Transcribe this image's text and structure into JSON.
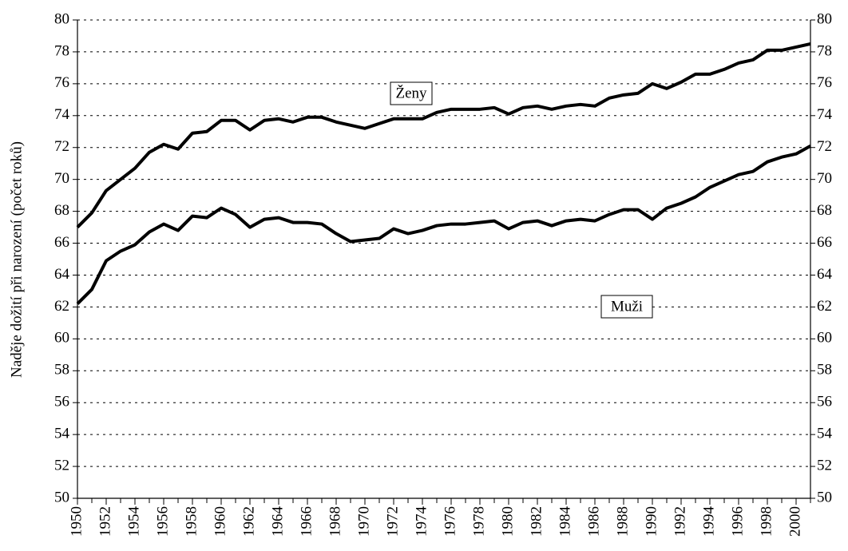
{
  "chart_data": {
    "type": "line",
    "y_label": "Naděje dožití při narození (počet roků)",
    "x": [
      1950,
      1951,
      1952,
      1953,
      1954,
      1955,
      1956,
      1957,
      1958,
      1959,
      1960,
      1961,
      1962,
      1963,
      1964,
      1965,
      1966,
      1967,
      1968,
      1969,
      1970,
      1971,
      1972,
      1973,
      1974,
      1975,
      1976,
      1977,
      1978,
      1979,
      1980,
      1981,
      1982,
      1983,
      1984,
      1985,
      1986,
      1987,
      1988,
      1989,
      1990,
      1991,
      1992,
      1993,
      1994,
      1995,
      1996,
      1997,
      1998,
      1999,
      2000,
      2001
    ],
    "series": [
      {
        "name": "Ženy",
        "color": "#000000",
        "values": [
          67.0,
          67.9,
          69.3,
          70.0,
          70.7,
          71.7,
          72.2,
          71.9,
          72.9,
          73.0,
          73.7,
          73.7,
          73.1,
          73.7,
          73.8,
          73.6,
          73.9,
          73.9,
          73.6,
          73.4,
          73.2,
          73.5,
          73.8,
          73.8,
          73.8,
          74.2,
          74.4,
          74.4,
          74.4,
          74.5,
          74.1,
          74.5,
          74.6,
          74.4,
          74.6,
          74.7,
          74.6,
          75.1,
          75.3,
          75.4,
          76.0,
          75.7,
          76.1,
          76.6,
          76.6,
          76.9,
          77.3,
          77.5,
          78.1,
          78.1,
          78.3,
          78.5
        ]
      },
      {
        "name": "Muži",
        "color": "#000000",
        "values": [
          62.2,
          63.1,
          64.9,
          65.5,
          65.9,
          66.7,
          67.2,
          66.8,
          67.7,
          67.6,
          68.2,
          67.8,
          67.0,
          67.5,
          67.6,
          67.3,
          67.3,
          67.2,
          66.6,
          66.1,
          66.2,
          66.3,
          66.9,
          66.6,
          66.8,
          67.1,
          67.2,
          67.2,
          67.3,
          67.4,
          66.9,
          67.3,
          67.4,
          67.1,
          67.4,
          67.5,
          67.4,
          67.8,
          68.1,
          68.1,
          67.5,
          68.2,
          68.5,
          68.9,
          69.5,
          69.9,
          70.3,
          70.5,
          71.1,
          71.4,
          71.6,
          72.1
        ]
      }
    ],
    "xlim": [
      1950,
      2001
    ],
    "xticks": [
      1950,
      1952,
      1954,
      1956,
      1958,
      1960,
      1962,
      1964,
      1966,
      1968,
      1970,
      1972,
      1974,
      1976,
      1978,
      1980,
      1982,
      1984,
      1986,
      1988,
      1990,
      1992,
      1994,
      1996,
      1998,
      2000
    ],
    "ylim": [
      50,
      80
    ],
    "yticks": [
      50,
      52,
      54,
      56,
      58,
      60,
      62,
      64,
      66,
      68,
      70,
      72,
      74,
      76,
      78,
      80
    ],
    "y2lim": [
      50,
      80
    ],
    "y2ticks": [
      50,
      52,
      54,
      56,
      58,
      60,
      62,
      64,
      66,
      68,
      70,
      72,
      74,
      76,
      78,
      80
    ],
    "grid": true
  }
}
